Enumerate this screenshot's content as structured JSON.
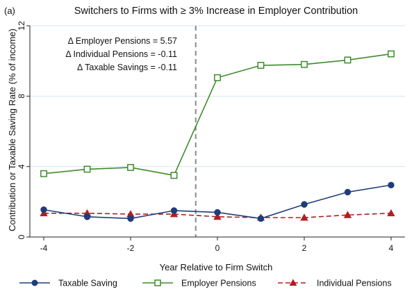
{
  "chart_data": {
    "type": "line",
    "panel_label": "(a)",
    "title": "Switchers to Firms with ≥ 3% Increase in Employer Contribution",
    "xlabel": "Year Relative to Firm Switch",
    "ylabel": "Contribution or Taxable Saving Rate (% of income)",
    "xlim": [
      -4,
      4
    ],
    "ylim": [
      0,
      12
    ],
    "x_ticks": [
      -4,
      -2,
      0,
      2,
      4
    ],
    "x_tick_labels": [
      "-4",
      "-2",
      "0",
      "2",
      "4"
    ],
    "y_ticks": [
      0,
      4,
      8,
      12
    ],
    "y_tick_labels": [
      "0",
      "4",
      "8",
      "12"
    ],
    "grid": "horizontal",
    "legend_position": "bottom",
    "x": [
      -4,
      -3,
      -2,
      -1,
      0,
      1,
      2,
      3,
      4
    ],
    "vertical_line": {
      "x": -0.5,
      "style": "dashed"
    },
    "annotations": [
      "Δ Employer Pensions = 5.57",
      "Δ Individual Pensions = -0.11",
      "Δ Taxable Savings = -0.11"
    ],
    "series": [
      {
        "name": "Taxable Saving",
        "color": "#1f3d7a",
        "marker": "circle-filled",
        "line": "solid",
        "values": [
          1.55,
          1.15,
          1.05,
          1.5,
          1.4,
          1.05,
          1.85,
          2.55,
          2.95
        ]
      },
      {
        "name": "Employer Pensions",
        "color": "#3d8b2c",
        "marker": "square-hollow",
        "line": "solid",
        "values": [
          3.6,
          3.85,
          3.95,
          3.5,
          9.05,
          9.75,
          9.8,
          10.05,
          10.4
        ]
      },
      {
        "name": "Individual Pensions",
        "color": "#b01e23",
        "marker": "triangle-filled",
        "line": "dashed",
        "values": [
          1.35,
          1.35,
          1.3,
          1.3,
          1.15,
          1.1,
          1.1,
          1.25,
          1.35
        ]
      }
    ]
  }
}
